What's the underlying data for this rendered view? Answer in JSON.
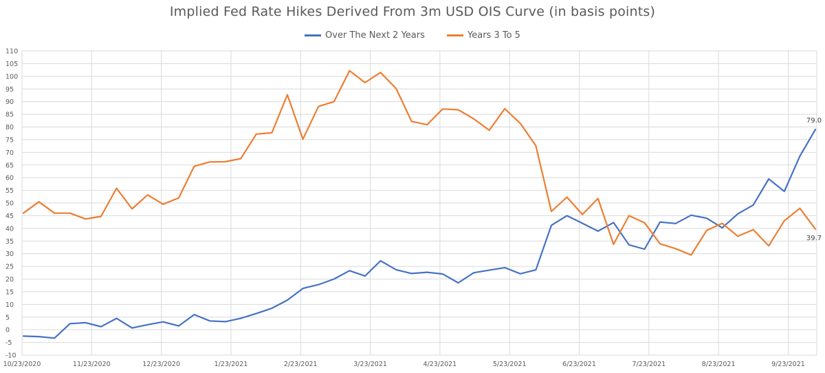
{
  "chart_data": {
    "type": "line",
    "title": "Implied Fed Rate Hikes Derived From 3m USD OIS Curve (in basis points)",
    "xlabel": "",
    "ylabel": "",
    "ylim": [
      -10,
      110
    ],
    "yticks": [
      -10,
      -5,
      0,
      5,
      10,
      15,
      20,
      25,
      30,
      35,
      40,
      45,
      50,
      55,
      60,
      65,
      70,
      75,
      80,
      85,
      90,
      95,
      100,
      105,
      110
    ],
    "xticks": [
      "10/23/2020",
      "11/23/2020",
      "12/23/2020",
      "1/23/2021",
      "2/23/2021",
      "3/23/2021",
      "4/23/2021",
      "5/23/2021",
      "6/23/2021",
      "7/23/2021",
      "8/23/2021",
      "9/23/2021"
    ],
    "grid": true,
    "legend_position": "top-center",
    "series": [
      {
        "name": "Over The Next 2 Years",
        "color": "#4472C4",
        "values": [
          -2.5,
          -2.7,
          -3.3,
          2.4,
          2.8,
          1.2,
          4.5,
          0.7,
          2.0,
          3.1,
          1.5,
          6.0,
          3.5,
          3.2,
          4.5,
          6.4,
          8.5,
          11.7,
          16.3,
          17.8,
          20.0,
          23.3,
          21.2,
          27.2,
          23.7,
          22.2,
          22.7,
          22.0,
          18.5,
          22.5,
          23.5,
          24.5,
          22.1,
          23.6,
          41.2,
          45.0,
          42.0,
          38.9,
          42.3,
          33.5,
          31.8,
          42.5,
          41.9,
          45.2,
          44.0,
          40.2,
          45.7,
          49.2,
          59.5,
          54.6,
          68.5,
          79.0
        ]
      },
      {
        "name": "Years 3 To 5",
        "color": "#ED7D31",
        "values": [
          46.0,
          50.5,
          46.0,
          46.0,
          43.7,
          44.7,
          55.8,
          47.7,
          53.2,
          49.5,
          52.0,
          64.5,
          66.2,
          66.3,
          67.5,
          77.2,
          77.7,
          92.7,
          75.2,
          88.1,
          90.0,
          102.2,
          97.5,
          101.5,
          95.2,
          82.2,
          80.9,
          87.1,
          86.8,
          83.2,
          78.7,
          87.2,
          81.4,
          72.6,
          46.7,
          52.3,
          45.5,
          51.8,
          33.7,
          45.0,
          42.2,
          33.9,
          32.0,
          29.5,
          39.2,
          42.0,
          36.9,
          39.5,
          33.1,
          43.0,
          47.9,
          39.7
        ]
      }
    ],
    "annotations": [
      {
        "series": 0,
        "index": 51,
        "text": "79.0"
      },
      {
        "series": 1,
        "index": 51,
        "text": "39.7"
      }
    ]
  }
}
